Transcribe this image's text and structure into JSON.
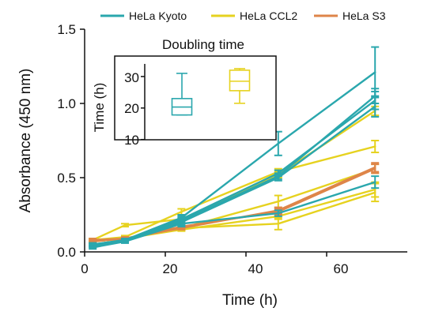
{
  "colors": {
    "hela_kyoto": "#2aa7ad",
    "hela_ccl2": "#e6d21f",
    "hela_s3": "#de8549",
    "axis": "#111111"
  },
  "chart_data": [
    {
      "type": "line",
      "title": "",
      "xlabel": "Time (h)",
      "ylabel": "Absorbance (450 nm)",
      "xlim": [
        0,
        80
      ],
      "ylim": [
        0,
        1.5
      ],
      "x_ticks": [
        0,
        20,
        40,
        60
      ],
      "y_ticks": [
        0.0,
        0.5,
        1.0,
        1.5
      ],
      "x_tick_labels": [
        "0",
        "20",
        "40",
        "60"
      ],
      "y_tick_labels": [
        "0.0",
        "0.5",
        "1.0",
        "1.5"
      ],
      "grid": false,
      "legend_position": "top",
      "legend": [
        {
          "label": "HeLa Kyoto",
          "color_key": "hela_kyoto"
        },
        {
          "label": "HeLa CCL2",
          "color_key": "hela_ccl2"
        },
        {
          "label": "HeLa S3",
          "color_key": "hela_s3"
        }
      ],
      "series": [
        {
          "color_key": "hela_ccl2",
          "x": [
            2,
            10,
            24,
            48,
            72
          ],
          "y": [
            0.08,
            0.18,
            0.22,
            0.52,
            0.95
          ],
          "err": [
            0.01,
            0.01,
            0.01,
            0.02,
            0.03
          ]
        },
        {
          "color_key": "hela_ccl2",
          "x": [
            2,
            10,
            24,
            48,
            72
          ],
          "y": [
            0.08,
            0.1,
            0.27,
            0.54,
            0.71
          ],
          "err": [
            0.01,
            0.01,
            0.02,
            0.02,
            0.04
          ]
        },
        {
          "color_key": "hela_ccl2",
          "x": [
            2,
            10,
            24,
            48,
            72
          ],
          "y": [
            0.07,
            0.09,
            0.16,
            0.34,
            0.56
          ],
          "err": [
            0.01,
            0.01,
            0.01,
            0.04,
            0.03
          ]
        },
        {
          "color_key": "hela_ccl2",
          "x": [
            2,
            10,
            24,
            48,
            72
          ],
          "y": [
            0.07,
            0.09,
            0.15,
            0.24,
            0.42
          ],
          "err": [
            0.01,
            0.01,
            0.01,
            0.02,
            0.05
          ]
        },
        {
          "color_key": "hela_ccl2",
          "x": [
            2,
            10,
            24,
            48,
            72
          ],
          "y": [
            0.07,
            0.09,
            0.16,
            0.19,
            0.4
          ],
          "err": [
            0.01,
            0.01,
            0.01,
            0.04,
            0.06
          ]
        },
        {
          "color_key": "hela_s3",
          "x": [
            2,
            10,
            24,
            48,
            72
          ],
          "y": [
            0.08,
            0.09,
            0.17,
            0.27,
            0.56
          ],
          "err": [
            0.01,
            0.01,
            0.01,
            0.02,
            0.03
          ]
        },
        {
          "color_key": "hela_s3",
          "x": [
            2,
            10,
            24,
            48,
            72
          ],
          "y": [
            0.07,
            0.09,
            0.16,
            0.28,
            0.57
          ],
          "err": [
            0.01,
            0.01,
            0.01,
            0.02,
            0.03
          ]
        },
        {
          "color_key": "hela_kyoto",
          "x": [
            2,
            10,
            24,
            48,
            72
          ],
          "y": [
            0.05,
            0.08,
            0.23,
            0.73,
            1.21
          ],
          "err": [
            0.01,
            0.01,
            0.02,
            0.08,
            0.17
          ]
        },
        {
          "color_key": "hela_kyoto",
          "x": [
            2,
            10,
            24,
            48,
            72
          ],
          "y": [
            0.05,
            0.08,
            0.22,
            0.53,
            1.02
          ],
          "err": [
            0.01,
            0.01,
            0.02,
            0.02,
            0.06
          ]
        },
        {
          "color_key": "hela_kyoto",
          "x": [
            2,
            10,
            24,
            48,
            72
          ],
          "y": [
            0.04,
            0.07,
            0.21,
            0.51,
            1.05
          ],
          "err": [
            0.01,
            0.01,
            0.02,
            0.02,
            0.05
          ]
        },
        {
          "color_key": "hela_kyoto",
          "x": [
            2,
            10,
            24,
            48,
            72
          ],
          "y": [
            0.03,
            0.07,
            0.2,
            0.5,
            0.98
          ],
          "err": [
            0.01,
            0.01,
            0.02,
            0.02,
            0.07
          ]
        },
        {
          "color_key": "hela_kyoto",
          "x": [
            2,
            10,
            24,
            48,
            72
          ],
          "y": [
            0.04,
            0.07,
            0.19,
            0.26,
            0.47
          ],
          "err": [
            0.01,
            0.01,
            0.02,
            0.02,
            0.04
          ]
        }
      ]
    },
    {
      "type": "box",
      "title": "Doubling time",
      "xlabel": "",
      "ylabel": "Time (h)",
      "ylim": [
        10,
        35
      ],
      "y_ticks": [
        10,
        20,
        30
      ],
      "y_tick_labels": [
        "10",
        "20",
        "30"
      ],
      "boxes": [
        {
          "color_key": "hela_kyoto",
          "min": 17.8,
          "q1": 17.8,
          "median": 20.3,
          "q3": 23.0,
          "max": 31.0
        },
        {
          "color_key": "hela_ccl2",
          "min": 21.5,
          "q1": 25.5,
          "median": 28.5,
          "q3": 32.0,
          "max": 32.5
        }
      ]
    }
  ]
}
